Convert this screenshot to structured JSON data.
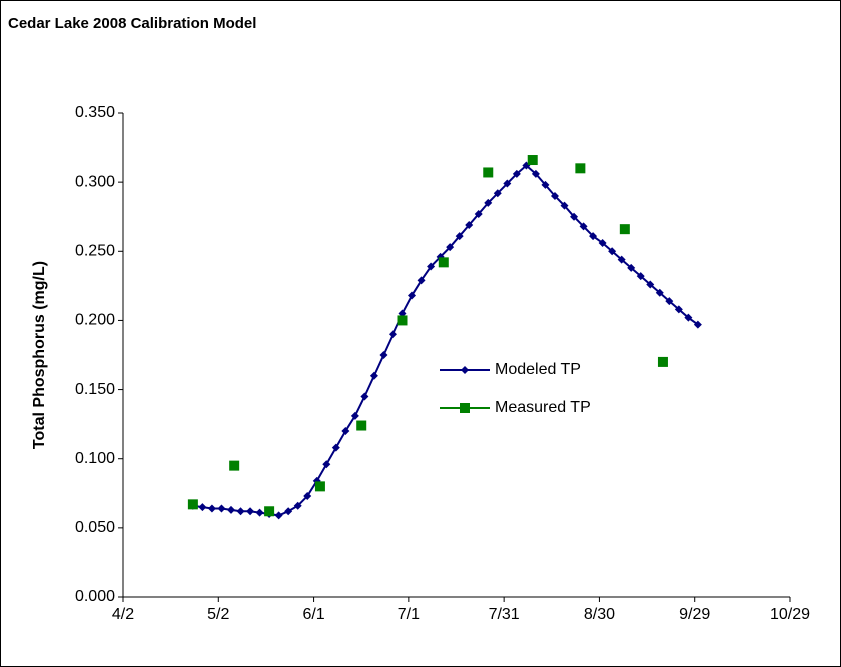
{
  "chart_data": {
    "type": "scatter-line",
    "title": "Cedar Lake 2008 Calibration Model",
    "ylabel": "Total Phosphorus (mg/L)",
    "xlim": [
      "4/2",
      "10/29"
    ],
    "xticks": [
      "4/2",
      "5/2",
      "6/1",
      "7/1",
      "7/31",
      "8/30",
      "9/29",
      "10/29"
    ],
    "ylim": [
      0,
      0.35
    ],
    "yticks": [
      {
        "value": 0,
        "label": "0.000"
      },
      {
        "value": 0.05,
        "label": "0.050"
      },
      {
        "value": 0.1,
        "label": "0.100"
      },
      {
        "value": 0.15,
        "label": "0.150"
      },
      {
        "value": 0.2,
        "label": "0.200"
      },
      {
        "value": 0.25,
        "label": "0.250"
      },
      {
        "value": 0.3,
        "label": "0.300"
      },
      {
        "value": 0.35,
        "label": "0.350"
      }
    ],
    "grid": false,
    "legend": "center",
    "series": [
      {
        "name": "Modeled TP",
        "color": "#000080",
        "marker": "diamond",
        "line": true,
        "x": [
          "4/24",
          "4/27",
          "4/30",
          "5/3",
          "5/6",
          "5/9",
          "5/12",
          "5/15",
          "5/18",
          "5/21",
          "5/24",
          "5/27",
          "5/30",
          "6/2",
          "6/5",
          "6/8",
          "6/11",
          "6/14",
          "6/17",
          "6/20",
          "6/23",
          "6/26",
          "6/29",
          "7/2",
          "7/5",
          "7/8",
          "7/11",
          "7/14",
          "7/17",
          "7/20",
          "7/23",
          "7/26",
          "7/29",
          "8/1",
          "8/4",
          "8/7",
          "8/10",
          "8/13",
          "8/16",
          "8/19",
          "8/22",
          "8/25",
          "8/28",
          "8/31",
          "9/3",
          "9/6",
          "9/9",
          "9/12",
          "9/15",
          "9/18",
          "9/21",
          "9/24",
          "9/27",
          "9/30"
        ],
        "values": [
          0.066,
          0.065,
          0.064,
          0.064,
          0.063,
          0.062,
          0.062,
          0.061,
          0.06,
          0.059,
          0.062,
          0.066,
          0.073,
          0.084,
          0.096,
          0.108,
          0.12,
          0.131,
          0.145,
          0.16,
          0.175,
          0.19,
          0.205,
          0.218,
          0.229,
          0.239,
          0.246,
          0.253,
          0.261,
          0.269,
          0.277,
          0.285,
          0.292,
          0.299,
          0.306,
          0.312,
          0.306,
          0.298,
          0.29,
          0.283,
          0.275,
          0.268,
          0.261,
          0.256,
          0.25,
          0.244,
          0.238,
          0.232,
          0.226,
          0.22,
          0.214,
          0.208,
          0.202,
          0.197
        ]
      },
      {
        "name": "Measured TP",
        "color": "#008000",
        "marker": "square",
        "line": false,
        "x": [
          "4/24",
          "5/7",
          "5/18",
          "6/3",
          "6/16",
          "6/29",
          "7/12",
          "7/26",
          "8/9",
          "8/24",
          "9/7",
          "9/19"
        ],
        "values": [
          0.067,
          0.095,
          0.062,
          0.08,
          0.124,
          0.2,
          0.242,
          0.307,
          0.316,
          0.31,
          0.266,
          0.17
        ]
      }
    ]
  }
}
